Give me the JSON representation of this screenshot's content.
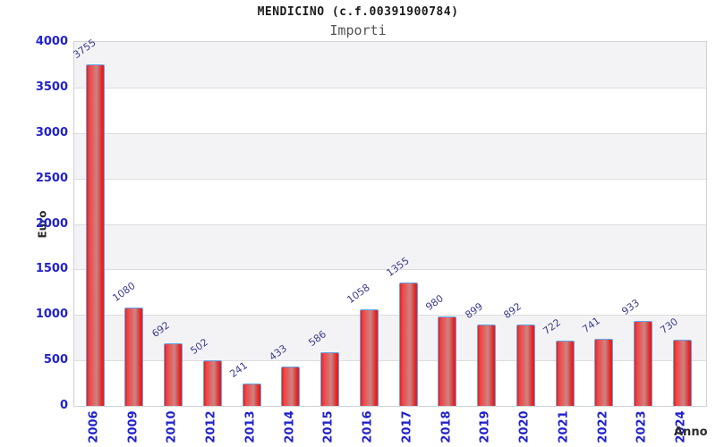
{
  "header": {
    "title": "MENDICINO (c.f.00391900784)",
    "subtitle": "Importi"
  },
  "chart_data": {
    "type": "bar",
    "title": "MENDICINO (c.f.00391900784)",
    "subtitle": "Importi",
    "xlabel": "Anno",
    "ylabel": "Euro",
    "categories": [
      "2006",
      "2009",
      "2010",
      "2012",
      "2013",
      "2014",
      "2015",
      "2016",
      "2017",
      "2018",
      "2019",
      "2020",
      "2021",
      "2022",
      "2023",
      "2024"
    ],
    "values": [
      3755,
      1080,
      692,
      502,
      241,
      433,
      586,
      1058,
      1355,
      980,
      899,
      892,
      722,
      741,
      933,
      730
    ],
    "ylim": [
      0,
      4000
    ],
    "yticks": [
      0,
      500,
      1000,
      1500,
      2000,
      2500,
      3000,
      3500,
      4000
    ],
    "grid": "alternating horizontal bands with gridlines every 500",
    "legend": "none",
    "bar_labels_rotated": true,
    "xtick_labels_rotated": true
  },
  "colors": {
    "title": "#1a1a1a",
    "subtitle": "#555555",
    "tick_label": "#2222cc",
    "value_label": "#3c3c8e",
    "axis_title": "#2b2b2b",
    "band_gray": "#f3f3f5",
    "band_white": "#ffffff",
    "gridline": "#dddddd",
    "plot_border": "#cfd2da",
    "bar_border": "#64a4e8",
    "bar_red_edge": "#e81e1e",
    "bar_red_mid": "#d08282"
  }
}
